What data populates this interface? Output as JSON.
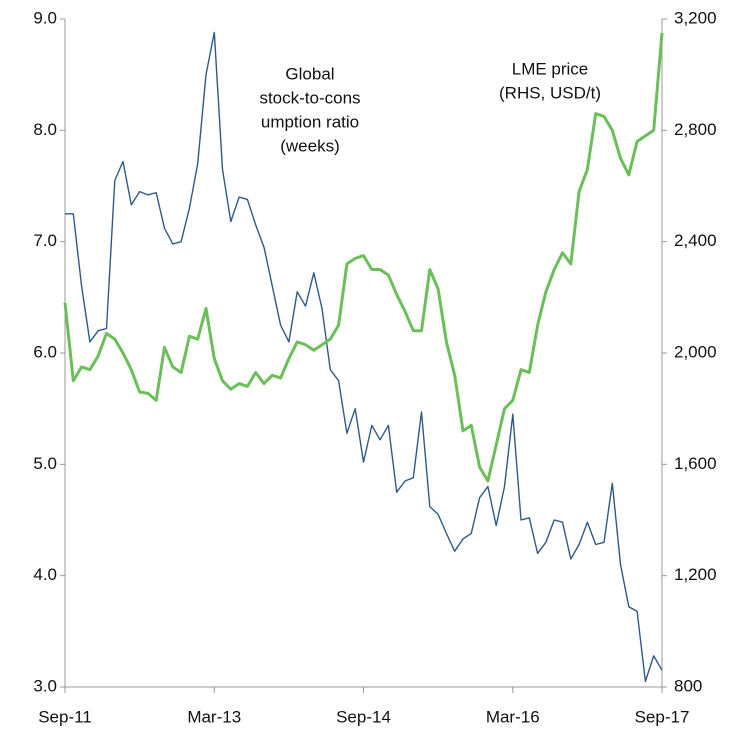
{
  "chart_data": {
    "type": "line",
    "categories": [
      "Sep-11",
      null,
      null,
      null,
      null,
      null,
      null,
      null,
      null,
      null,
      null,
      null,
      null,
      null,
      null,
      null,
      null,
      null,
      "Mar-13",
      null,
      null,
      null,
      null,
      null,
      null,
      null,
      null,
      null,
      null,
      null,
      null,
      null,
      null,
      null,
      null,
      null,
      "Sep-14",
      null,
      null,
      null,
      null,
      null,
      null,
      null,
      null,
      null,
      null,
      null,
      null,
      null,
      null,
      null,
      null,
      null,
      "Mar-16",
      null,
      null,
      null,
      null,
      null,
      null,
      null,
      null,
      null,
      null,
      null,
      null,
      null,
      null,
      null,
      null,
      null,
      "Sep-17"
    ],
    "series": [
      {
        "name": "Global stock-to-consumption ratio (weeks)",
        "color": "#2e5a87",
        "axis": "y",
        "values": [
          7.25,
          7.25,
          6.6,
          6.1,
          6.2,
          6.22,
          7.55,
          7.72,
          7.33,
          7.45,
          7.42,
          7.44,
          7.12,
          6.98,
          7.0,
          7.3,
          7.7,
          8.5,
          8.88,
          7.65,
          7.18,
          7.4,
          7.38,
          7.15,
          6.95,
          6.6,
          6.25,
          6.1,
          6.55,
          6.42,
          6.72,
          6.4,
          5.85,
          5.75,
          5.28,
          5.5,
          5.02,
          5.35,
          5.22,
          5.35,
          4.75,
          4.85,
          4.88,
          5.47,
          4.62,
          4.55,
          4.38,
          4.22,
          4.33,
          4.38,
          4.7,
          4.8,
          4.45,
          4.8,
          5.45,
          4.5,
          4.52,
          4.2,
          4.3,
          4.5,
          4.48,
          4.15,
          4.28,
          4.48,
          4.28,
          4.3,
          4.83,
          4.1,
          3.72,
          3.68,
          3.05,
          3.28,
          3.15
        ]
      },
      {
        "name": "LME price",
        "color": "#6abf5a",
        "axis": "y2",
        "values": [
          2180,
          1900,
          1950,
          1940,
          1990,
          2070,
          2050,
          2000,
          1940,
          1860,
          1855,
          1830,
          2020,
          1950,
          1930,
          2060,
          2050,
          2160,
          1980,
          1900,
          1870,
          1890,
          1880,
          1930,
          1890,
          1920,
          1910,
          1980,
          2040,
          2030,
          2010,
          2030,
          2050,
          2100,
          2320,
          2340,
          2350,
          2300,
          2300,
          2280,
          2210,
          2150,
          2080,
          2080,
          2300,
          2230,
          2040,
          1920,
          1720,
          1740,
          1590,
          1540,
          1670,
          1800,
          1830,
          1940,
          1930,
          2100,
          2220,
          2300,
          2360,
          2320,
          2580,
          2660,
          2860,
          2850,
          2800,
          2700,
          2640,
          2760,
          2780,
          2800,
          3150
        ]
      }
    ],
    "annotations": [
      {
        "lines": [
          "Global",
          "stock-to-cons",
          "umption ratio",
          "(weeks)"
        ]
      },
      {
        "lines": [
          "LME price",
          "(RHS, USD/t)"
        ]
      }
    ],
    "ylim": [
      3,
      9
    ],
    "yticks": [
      {
        "value": 3,
        "label": "3.0"
      },
      {
        "value": 4,
        "label": "4.0"
      },
      {
        "value": 5,
        "label": "5.0"
      },
      {
        "value": 6,
        "label": "6.0"
      },
      {
        "value": 7,
        "label": "7.0"
      },
      {
        "value": 8,
        "label": "8.0"
      },
      {
        "value": 9,
        "label": "9.0"
      }
    ],
    "y2lim": [
      800,
      3200
    ],
    "y2ticks": [
      800,
      {
        "value": 1200,
        "label": "1,200"
      },
      {
        "value": 1600,
        "label": "1,600"
      },
      {
        "value": 2000,
        "label": "2,000"
      },
      {
        "value": 2400,
        "label": "2,400"
      },
      {
        "value": 2800,
        "label": "2,800"
      },
      {
        "value": 3200,
        "label": "3,200"
      }
    ],
    "grid": false
  }
}
